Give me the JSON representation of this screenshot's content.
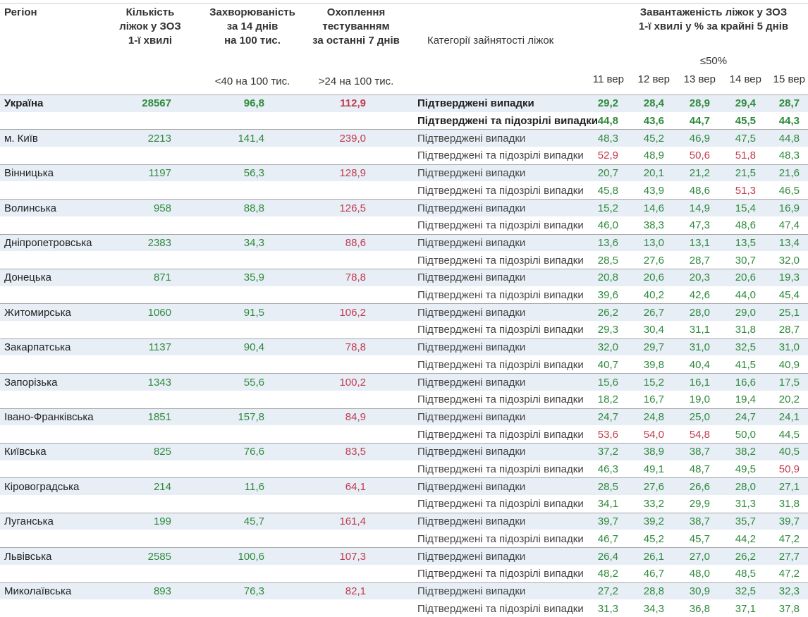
{
  "header": {
    "region": "Регіон",
    "beds": [
      "Кількість",
      "ліжок у ЗОЗ",
      "1-ї хвилі"
    ],
    "incidence": [
      "Захворюваність",
      "за 14 днів",
      "на 100 тис."
    ],
    "coverage": [
      "Охоплення",
      "тестуванням",
      "за останні 7 днів"
    ],
    "category": "Категорії зайнятості ліжок",
    "load": [
      "Завантаженість ліжок у ЗОЗ",
      "1-ї хвилі у % за крайні 5 днів"
    ],
    "incidence_threshold": "<40 на 100 тис.",
    "coverage_threshold": ">24 на 100 тис.",
    "load_threshold": "≤50%",
    "dates": [
      "11 вер",
      "12 вер",
      "13 вер",
      "14 вер",
      "15 вер"
    ]
  },
  "rows": [
    {
      "region": "Україна",
      "beds": "28567",
      "incidence": "96,8",
      "coverage": "112,9",
      "categories": [
        "Підтверджені випадки",
        "Підтверджені та підозрілі випадки"
      ],
      "load": [
        [
          "29,2",
          "28,4",
          "28,9",
          "29,4",
          "28,7"
        ],
        [
          "44,8",
          "43,6",
          "44,7",
          "45,5",
          "44,3"
        ]
      ]
    },
    {
      "region": "м. Київ",
      "beds": "2213",
      "incidence": "141,4",
      "coverage": "239,0",
      "categories": [
        "Підтверджені випадки",
        "Підтверджені та підозрілі випадки"
      ],
      "load": [
        [
          "48,3",
          "45,2",
          "46,9",
          "47,5",
          "44,8"
        ],
        [
          "52,9",
          "48,9",
          "50,6",
          "51,8",
          "48,3"
        ]
      ]
    },
    {
      "region": "Вінницька",
      "beds": "1197",
      "incidence": "56,3",
      "coverage": "128,9",
      "categories": [
        "Підтверджені випадки",
        "Підтверджені та підозрілі випадки"
      ],
      "load": [
        [
          "20,7",
          "20,1",
          "21,2",
          "21,5",
          "21,6"
        ],
        [
          "45,8",
          "43,9",
          "48,6",
          "51,3",
          "46,5"
        ]
      ]
    },
    {
      "region": "Волинська",
      "beds": "958",
      "incidence": "88,8",
      "coverage": "126,5",
      "categories": [
        "Підтверджені випадки",
        "Підтверджені та підозрілі випадки"
      ],
      "load": [
        [
          "15,2",
          "14,6",
          "14,9",
          "15,4",
          "16,9"
        ],
        [
          "46,0",
          "38,3",
          "47,3",
          "48,6",
          "47,4"
        ]
      ]
    },
    {
      "region": "Дніпропетровська",
      "beds": "2383",
      "incidence": "34,3",
      "coverage": "88,6",
      "categories": [
        "Підтверджені випадки",
        "Підтверджені та підозрілі випадки"
      ],
      "load": [
        [
          "13,6",
          "13,0",
          "13,1",
          "13,5",
          "13,4"
        ],
        [
          "28,5",
          "27,6",
          "28,7",
          "30,7",
          "32,0"
        ]
      ]
    },
    {
      "region": "Донецька",
      "beds": "871",
      "incidence": "35,9",
      "coverage": "78,8",
      "categories": [
        "Підтверджені випадки",
        "Підтверджені та підозрілі випадки"
      ],
      "load": [
        [
          "20,8",
          "20,6",
          "20,3",
          "20,6",
          "19,3"
        ],
        [
          "39,6",
          "40,2",
          "42,6",
          "44,0",
          "45,4"
        ]
      ]
    },
    {
      "region": "Житомирська",
      "beds": "1060",
      "incidence": "91,5",
      "coverage": "106,2",
      "categories": [
        "Підтверджені випадки",
        "Підтверджені та підозрілі випадки"
      ],
      "load": [
        [
          "26,2",
          "26,7",
          "28,0",
          "29,0",
          "25,1"
        ],
        [
          "29,3",
          "30,4",
          "31,1",
          "31,8",
          "28,7"
        ]
      ]
    },
    {
      "region": "Закарпатська",
      "beds": "1137",
      "incidence": "90,4",
      "coverage": "78,8",
      "categories": [
        "Підтверджені випадки",
        "Підтверджені та підозрілі випадки"
      ],
      "load": [
        [
          "32,0",
          "29,7",
          "31,0",
          "32,5",
          "31,0"
        ],
        [
          "40,7",
          "39,8",
          "40,4",
          "41,5",
          "40,9"
        ]
      ]
    },
    {
      "region": "Запорізька",
      "beds": "1343",
      "incidence": "55,6",
      "coverage": "100,2",
      "categories": [
        "Підтверджені випадки",
        "Підтверджені та підозрілі випадки"
      ],
      "load": [
        [
          "15,6",
          "15,2",
          "16,1",
          "16,6",
          "17,5"
        ],
        [
          "18,2",
          "16,7",
          "19,0",
          "19,4",
          "20,2"
        ]
      ]
    },
    {
      "region": "Івано-Франківська",
      "beds": "1851",
      "incidence": "157,8",
      "coverage": "84,9",
      "categories": [
        "Підтверджені випадки",
        "Підтверджені та підозрілі випадки"
      ],
      "load": [
        [
          "24,7",
          "24,8",
          "25,0",
          "24,7",
          "24,1"
        ],
        [
          "53,6",
          "54,0",
          "54,8",
          "50,0",
          "44,5"
        ]
      ]
    },
    {
      "region": "Київська",
      "beds": "825",
      "incidence": "76,6",
      "coverage": "83,5",
      "categories": [
        "Підтверджені випадки",
        "Підтверджені та підозрілі випадки"
      ],
      "load": [
        [
          "37,2",
          "38,9",
          "38,7",
          "38,2",
          "40,5"
        ],
        [
          "46,3",
          "49,1",
          "48,7",
          "49,5",
          "50,9"
        ]
      ]
    },
    {
      "region": "Кіровоградська",
      "beds": "214",
      "incidence": "11,6",
      "coverage": "64,1",
      "categories": [
        "Підтверджені випадки",
        "Підтверджені та підозрілі випадки"
      ],
      "load": [
        [
          "28,5",
          "27,6",
          "26,6",
          "28,0",
          "27,1"
        ],
        [
          "34,1",
          "33,2",
          "29,9",
          "31,3",
          "31,8"
        ]
      ]
    },
    {
      "region": "Луганська",
      "beds": "199",
      "incidence": "45,7",
      "coverage": "161,4",
      "categories": [
        "Підтверджені випадки",
        "Підтверджені та підозрілі випадки"
      ],
      "load": [
        [
          "39,7",
          "39,2",
          "38,7",
          "35,7",
          "39,7"
        ],
        [
          "46,7",
          "45,2",
          "45,7",
          "44,2",
          "47,2"
        ]
      ]
    },
    {
      "region": "Львівська",
      "beds": "2585",
      "incidence": "100,6",
      "coverage": "107,3",
      "categories": [
        "Підтверджені випадки",
        "Підтверджені та підозрілі випадки"
      ],
      "load": [
        [
          "26,4",
          "26,1",
          "27,0",
          "26,2",
          "27,7"
        ],
        [
          "48,2",
          "46,7",
          "48,0",
          "48,5",
          "47,2"
        ]
      ]
    },
    {
      "region": "Миколаївська",
      "beds": "893",
      "incidence": "76,3",
      "coverage": "82,1",
      "categories": [
        "Підтверджені випадки",
        "Підтверджені та підозрілі випадки"
      ],
      "load": [
        [
          "27,2",
          "28,8",
          "30,9",
          "32,5",
          "32,3"
        ],
        [
          "31,3",
          "34,3",
          "36,8",
          "37,1",
          "37,8"
        ]
      ]
    }
  ]
}
